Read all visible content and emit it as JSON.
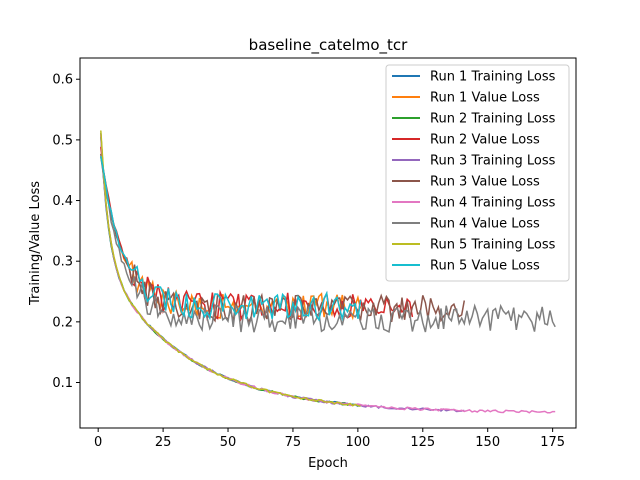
{
  "chart_data": {
    "type": "line",
    "title": "baseline_catelmo_tcr",
    "xlabel": "Epoch",
    "ylabel": "Training/Value Loss",
    "xlim": [
      -7,
      184
    ],
    "ylim": [
      0.025,
      0.635
    ],
    "xticks": [
      0,
      25,
      50,
      75,
      100,
      125,
      150,
      175
    ],
    "yticks": [
      0.1,
      0.2,
      0.3,
      0.4,
      0.5,
      0.6
    ],
    "grid": false,
    "legend_position": "top-right",
    "series": [
      {
        "name": "Run 1 Training Loss",
        "color": "#1f77b4",
        "kind": "train",
        "epochs": 101,
        "start": 0.59,
        "seed": 11
      },
      {
        "name": "Run 1 Value Loss",
        "color": "#ff7f0e",
        "kind": "val",
        "epochs": 101,
        "start": 0.51,
        "plateau": 0.226,
        "seed": 12
      },
      {
        "name": "Run 2 Training Loss",
        "color": "#2ca02c",
        "kind": "train",
        "epochs": 101,
        "start": 0.6,
        "seed": 21
      },
      {
        "name": "Run 2 Value Loss",
        "color": "#d62728",
        "kind": "val",
        "epochs": 121,
        "start": 0.52,
        "plateau": 0.226,
        "seed": 22
      },
      {
        "name": "Run 3 Training Loss",
        "color": "#9467bd",
        "kind": "train",
        "epochs": 141,
        "start": 0.6,
        "seed": 31
      },
      {
        "name": "Run 3 Value Loss",
        "color": "#8c564b",
        "kind": "val",
        "epochs": 141,
        "start": 0.51,
        "plateau": 0.222,
        "seed": 32
      },
      {
        "name": "Run 4 Training Loss",
        "color": "#e377c2",
        "kind": "train",
        "epochs": 176,
        "start": 0.6,
        "seed": 41
      },
      {
        "name": "Run 4 Value Loss",
        "color": "#7f7f7f",
        "kind": "val",
        "epochs": 176,
        "start": 0.51,
        "plateau": 0.205,
        "seed": 42
      },
      {
        "name": "Run 5 Training Loss",
        "color": "#bcbd22",
        "kind": "train",
        "epochs": 101,
        "start": 0.61,
        "seed": 51
      },
      {
        "name": "Run 5 Value Loss",
        "color": "#17becf",
        "kind": "val",
        "epochs": 101,
        "start": 0.51,
        "plateau": 0.226,
        "seed": 52
      }
    ]
  }
}
